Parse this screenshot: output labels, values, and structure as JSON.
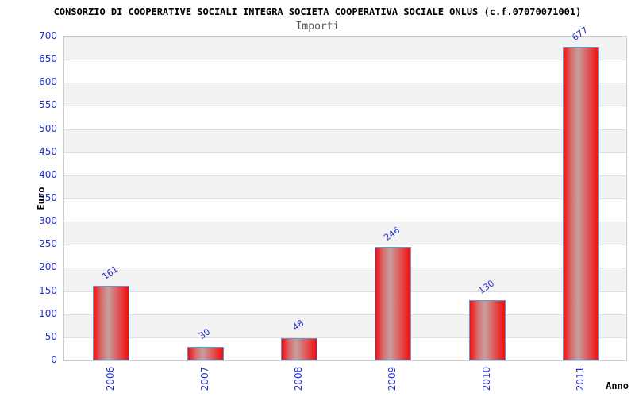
{
  "chart_data": {
    "type": "bar",
    "title": "CONSORZIO DI COOPERATIVE SOCIALI INTEGRA SOCIETA COOPERATIVA SOCIALE ONLUS (c.f.07070071001)",
    "subtitle": "Importi",
    "categories": [
      "2006",
      "2007",
      "2008",
      "2009",
      "2010",
      "2011"
    ],
    "values": [
      161,
      30,
      48,
      246,
      130,
      677
    ],
    "xlabel": "Anno",
    "ylabel": "Euro",
    "ylim": [
      0,
      700
    ],
    "ytick_step": 50,
    "grid": true,
    "legend": "none",
    "colors": {
      "bar_edge": "#f20d0d",
      "bar_mid": "#d96c6c",
      "bar_center": "#c6a0a0",
      "bar_border": "#5b9bd5",
      "tick_label_blue": "#2530cc",
      "band_gray": "#f2f2f2",
      "band_white": "#ffffff",
      "gridline": "#dedede",
      "plot_border": "#cccccc",
      "title_color": "#000000",
      "subtitle_color": "#555555"
    }
  }
}
